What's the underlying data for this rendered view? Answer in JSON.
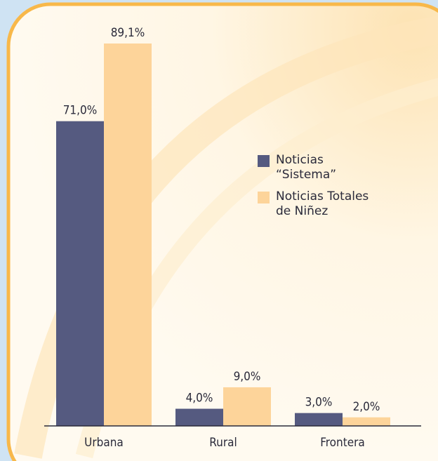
{
  "chart_data": {
    "type": "bar",
    "categories": [
      "Urbana",
      "Rural",
      "Frontera"
    ],
    "series": [
      {
        "name": "Noticias “Sistema”",
        "color": "#555a80",
        "values": [
          71.0,
          4.0,
          3.0
        ],
        "value_labels": [
          "71,0%",
          "4,0%",
          "3,0%"
        ]
      },
      {
        "name": "Noticias Totales de Niñez",
        "color": "#fdd49a",
        "values": [
          89.1,
          9.0,
          2.0
        ],
        "value_labels": [
          "89,1%",
          "9,0%",
          "2,0%"
        ]
      }
    ]
  }
}
